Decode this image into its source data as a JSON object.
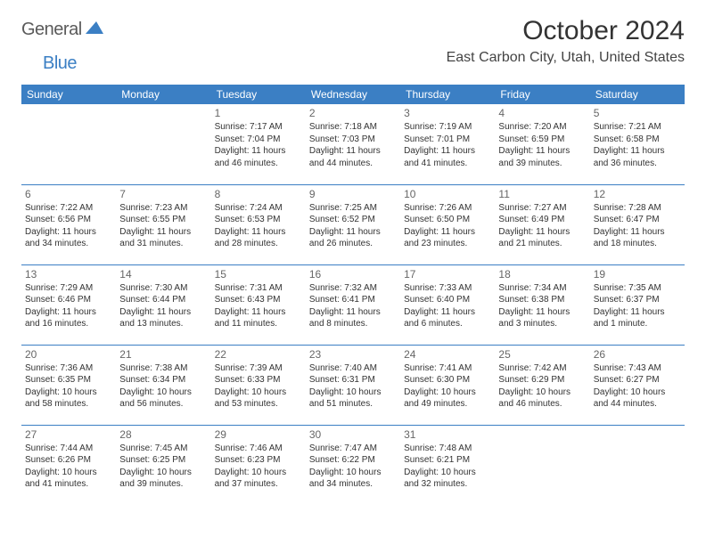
{
  "brand": {
    "word1": "General",
    "word2": "Blue",
    "color1": "#5a5a5a",
    "color2": "#3b7fc4"
  },
  "title": "October 2024",
  "location": "East Carbon City, Utah, United States",
  "header_bg": "#3b7fc4",
  "header_fg": "#ffffff",
  "rule_color": "#3b7fc4",
  "dayNames": [
    "Sunday",
    "Monday",
    "Tuesday",
    "Wednesday",
    "Thursday",
    "Friday",
    "Saturday"
  ],
  "weeks": [
    [
      null,
      null,
      {
        "n": "1",
        "sr": "Sunrise: 7:17 AM",
        "ss": "Sunset: 7:04 PM",
        "dl": "Daylight: 11 hours and 46 minutes."
      },
      {
        "n": "2",
        "sr": "Sunrise: 7:18 AM",
        "ss": "Sunset: 7:03 PM",
        "dl": "Daylight: 11 hours and 44 minutes."
      },
      {
        "n": "3",
        "sr": "Sunrise: 7:19 AM",
        "ss": "Sunset: 7:01 PM",
        "dl": "Daylight: 11 hours and 41 minutes."
      },
      {
        "n": "4",
        "sr": "Sunrise: 7:20 AM",
        "ss": "Sunset: 6:59 PM",
        "dl": "Daylight: 11 hours and 39 minutes."
      },
      {
        "n": "5",
        "sr": "Sunrise: 7:21 AM",
        "ss": "Sunset: 6:58 PM",
        "dl": "Daylight: 11 hours and 36 minutes."
      }
    ],
    [
      {
        "n": "6",
        "sr": "Sunrise: 7:22 AM",
        "ss": "Sunset: 6:56 PM",
        "dl": "Daylight: 11 hours and 34 minutes."
      },
      {
        "n": "7",
        "sr": "Sunrise: 7:23 AM",
        "ss": "Sunset: 6:55 PM",
        "dl": "Daylight: 11 hours and 31 minutes."
      },
      {
        "n": "8",
        "sr": "Sunrise: 7:24 AM",
        "ss": "Sunset: 6:53 PM",
        "dl": "Daylight: 11 hours and 28 minutes."
      },
      {
        "n": "9",
        "sr": "Sunrise: 7:25 AM",
        "ss": "Sunset: 6:52 PM",
        "dl": "Daylight: 11 hours and 26 minutes."
      },
      {
        "n": "10",
        "sr": "Sunrise: 7:26 AM",
        "ss": "Sunset: 6:50 PM",
        "dl": "Daylight: 11 hours and 23 minutes."
      },
      {
        "n": "11",
        "sr": "Sunrise: 7:27 AM",
        "ss": "Sunset: 6:49 PM",
        "dl": "Daylight: 11 hours and 21 minutes."
      },
      {
        "n": "12",
        "sr": "Sunrise: 7:28 AM",
        "ss": "Sunset: 6:47 PM",
        "dl": "Daylight: 11 hours and 18 minutes."
      }
    ],
    [
      {
        "n": "13",
        "sr": "Sunrise: 7:29 AM",
        "ss": "Sunset: 6:46 PM",
        "dl": "Daylight: 11 hours and 16 minutes."
      },
      {
        "n": "14",
        "sr": "Sunrise: 7:30 AM",
        "ss": "Sunset: 6:44 PM",
        "dl": "Daylight: 11 hours and 13 minutes."
      },
      {
        "n": "15",
        "sr": "Sunrise: 7:31 AM",
        "ss": "Sunset: 6:43 PM",
        "dl": "Daylight: 11 hours and 11 minutes."
      },
      {
        "n": "16",
        "sr": "Sunrise: 7:32 AM",
        "ss": "Sunset: 6:41 PM",
        "dl": "Daylight: 11 hours and 8 minutes."
      },
      {
        "n": "17",
        "sr": "Sunrise: 7:33 AM",
        "ss": "Sunset: 6:40 PM",
        "dl": "Daylight: 11 hours and 6 minutes."
      },
      {
        "n": "18",
        "sr": "Sunrise: 7:34 AM",
        "ss": "Sunset: 6:38 PM",
        "dl": "Daylight: 11 hours and 3 minutes."
      },
      {
        "n": "19",
        "sr": "Sunrise: 7:35 AM",
        "ss": "Sunset: 6:37 PM",
        "dl": "Daylight: 11 hours and 1 minute."
      }
    ],
    [
      {
        "n": "20",
        "sr": "Sunrise: 7:36 AM",
        "ss": "Sunset: 6:35 PM",
        "dl": "Daylight: 10 hours and 58 minutes."
      },
      {
        "n": "21",
        "sr": "Sunrise: 7:38 AM",
        "ss": "Sunset: 6:34 PM",
        "dl": "Daylight: 10 hours and 56 minutes."
      },
      {
        "n": "22",
        "sr": "Sunrise: 7:39 AM",
        "ss": "Sunset: 6:33 PM",
        "dl": "Daylight: 10 hours and 53 minutes."
      },
      {
        "n": "23",
        "sr": "Sunrise: 7:40 AM",
        "ss": "Sunset: 6:31 PM",
        "dl": "Daylight: 10 hours and 51 minutes."
      },
      {
        "n": "24",
        "sr": "Sunrise: 7:41 AM",
        "ss": "Sunset: 6:30 PM",
        "dl": "Daylight: 10 hours and 49 minutes."
      },
      {
        "n": "25",
        "sr": "Sunrise: 7:42 AM",
        "ss": "Sunset: 6:29 PM",
        "dl": "Daylight: 10 hours and 46 minutes."
      },
      {
        "n": "26",
        "sr": "Sunrise: 7:43 AM",
        "ss": "Sunset: 6:27 PM",
        "dl": "Daylight: 10 hours and 44 minutes."
      }
    ],
    [
      {
        "n": "27",
        "sr": "Sunrise: 7:44 AM",
        "ss": "Sunset: 6:26 PM",
        "dl": "Daylight: 10 hours and 41 minutes."
      },
      {
        "n": "28",
        "sr": "Sunrise: 7:45 AM",
        "ss": "Sunset: 6:25 PM",
        "dl": "Daylight: 10 hours and 39 minutes."
      },
      {
        "n": "29",
        "sr": "Sunrise: 7:46 AM",
        "ss": "Sunset: 6:23 PM",
        "dl": "Daylight: 10 hours and 37 minutes."
      },
      {
        "n": "30",
        "sr": "Sunrise: 7:47 AM",
        "ss": "Sunset: 6:22 PM",
        "dl": "Daylight: 10 hours and 34 minutes."
      },
      {
        "n": "31",
        "sr": "Sunrise: 7:48 AM",
        "ss": "Sunset: 6:21 PM",
        "dl": "Daylight: 10 hours and 32 minutes."
      },
      null,
      null
    ]
  ]
}
